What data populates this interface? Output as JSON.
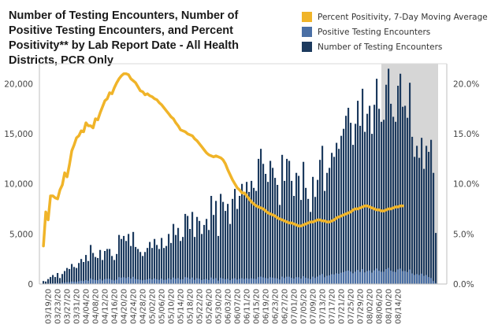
{
  "chart_data": {
    "type": "bar",
    "title": "Number of Testing Encounters, Number of Positive Testing Encounters, and Percent Positivity** by Lab Report Date - All Health Districts, PCR Only",
    "legend": [
      {
        "label": "Percent Positivity, 7-Day Moving Average",
        "color": "#f0b429",
        "kind": "line"
      },
      {
        "label": "Positive Testing Encounters",
        "color": "#4a6fa5",
        "kind": "bar"
      },
      {
        "label": "Number of Testing Encounters",
        "color": "#1c3a5e",
        "kind": "bar"
      }
    ],
    "legend_position": "top-right",
    "xlabel": "",
    "ylabel_left": "",
    "ylabel_right": "",
    "ylim_left": [
      0,
      22000
    ],
    "ylim_right": [
      0,
      0.22
    ],
    "yticks_left": [
      0,
      5000,
      10000,
      15000,
      20000
    ],
    "yticks_left_labels": [
      "0",
      "5,000",
      "10,000",
      "15,000",
      "20,000"
    ],
    "yticks_right_labels": [
      "0.0%",
      "5.0%",
      "10.0%",
      "15.0%",
      "20.0%"
    ],
    "yticks_right": [
      0,
      0.05,
      0.1,
      0.15,
      0.2
    ],
    "x_start": "2020-03-17",
    "x_tick_labels": [
      "03/19/20",
      "03/23/20",
      "03/27/20",
      "03/31/20",
      "04/04/20",
      "04/08/20",
      "04/12/20",
      "04/16/20",
      "04/20/20",
      "04/24/20",
      "04/28/20",
      "05/02/20",
      "05/06/20",
      "05/10/20",
      "05/14/20",
      "05/18/20",
      "05/22/20",
      "05/26/20",
      "05/30/20",
      "06/03/20",
      "06/07/20",
      "06/11/20",
      "06/15/20",
      "06/19/20",
      "06/23/20",
      "06/27/20",
      "07/01/20",
      "07/05/20",
      "07/09/20",
      "07/13/20",
      "07/17/20",
      "07/21/20",
      "07/25/20",
      "07/29/20",
      "08/02/20",
      "08/06/20",
      "08/10/20",
      "08/14/20"
    ],
    "x_tick_first_index": 2,
    "x_tick_step": 4,
    "incomplete_region_start_index": 143,
    "grid": false,
    "series": [
      {
        "name": "Number of Testing Encounters",
        "values": [
          300,
          250,
          500,
          700,
          900,
          700,
          1100,
          600,
          1000,
          1300,
          1600,
          1500,
          2000,
          1700,
          1600,
          2100,
          2500,
          2200,
          2900,
          2300,
          3900,
          3100,
          2700,
          2600,
          3400,
          2400,
          3300,
          3500,
          3500,
          2800,
          2400,
          3000,
          4900,
          4500,
          4800,
          4300,
          5000,
          3800,
          5200,
          3700,
          3500,
          3200,
          2800,
          3200,
          3600,
          4200,
          3600,
          4500,
          3900,
          3500,
          4600,
          3600,
          3800,
          5000,
          4100,
          6000,
          4900,
          5600,
          4300,
          4700,
          7000,
          6800,
          5500,
          7200,
          4700,
          6700,
          6300,
          5000,
          5900,
          6500,
          5400,
          8800,
          6900,
          8300,
          4800,
          9000,
          8200,
          7300,
          8000,
          6000,
          8500,
          9500,
          7500,
          8800,
          10000,
          8900,
          10200,
          9200,
          10300,
          9600,
          9300,
          12500,
          13500,
          12000,
          11000,
          10200,
          12300,
          11600,
          10600,
          9900,
          7900,
          12900,
          10300,
          12500,
          12300,
          10300,
          8800,
          11100,
          10800,
          8400,
          12200,
          9600,
          8500,
          7200,
          10700,
          8700,
          10400,
          12400,
          13800,
          9300,
          11100,
          11600,
          13100,
          12700,
          14100,
          13500,
          14800,
          15500,
          16800,
          17600,
          16100,
          13900,
          16000,
          18300,
          15800,
          19500,
          15200,
          17000,
          17800,
          15000,
          17900,
          20500,
          17500,
          16200,
          16400,
          19900,
          21500,
          18000,
          16700,
          16200,
          19800,
          21000,
          17700,
          17800,
          16600,
          20100,
          14700,
          12700,
          13800,
          12600,
          14600,
          11500,
          13800,
          13200,
          14400,
          11100,
          5100
        ]
      },
      {
        "name": "Positive Testing Encounters",
        "values": [
          20,
          20,
          40,
          60,
          80,
          70,
          110,
          70,
          120,
          150,
          190,
          180,
          250,
          220,
          210,
          280,
          330,
          300,
          400,
          330,
          560,
          450,
          400,
          380,
          500,
          360,
          490,
          520,
          520,
          420,
          360,
          440,
          690,
          640,
          680,
          600,
          700,
          540,
          720,
          510,
          470,
          430,
          380,
          420,
          470,
          540,
          460,
          560,
          480,
          420,
          540,
          420,
          440,
          570,
          460,
          650,
          520,
          590,
          450,
          480,
          690,
          650,
          510,
          650,
          420,
          580,
          530,
          410,
          470,
          510,
          410,
          650,
          500,
          590,
          340,
          620,
          550,
          480,
          520,
          380,
          530,
          580,
          450,
          520,
          580,
          510,
          580,
          520,
          570,
          530,
          510,
          690,
          740,
          660,
          600,
          560,
          680,
          640,
          590,
          560,
          450,
          740,
          600,
          730,
          730,
          620,
          540,
          690,
          680,
          540,
          790,
          630,
          570,
          490,
          740,
          610,
          740,
          890,
          1000,
          680,
          820,
          860,
          980,
          960,
          1070,
          1030,
          1130,
          1190,
          1290,
          1350,
          1240,
          1070,
          1230,
          1400,
          1210,
          1490,
          1160,
          1290,
          1360,
          1140,
          1360,
          1550,
          1320,
          1220,
          1230,
          1490,
          1610,
          1340,
          1240,
          1200,
          1460,
          1540,
          1290,
          1290,
          1200,
          1450,
          1060,
          910,
          990,
          900,
          1040,
          820,
          900,
          700,
          600,
          300,
          100
        ]
      },
      {
        "name": "Percent Positivity, 7-Day Moving Average",
        "axis": "right",
        "values": [
          0.038,
          0.072,
          0.064,
          0.088,
          0.088,
          0.086,
          0.085,
          0.094,
          0.099,
          0.111,
          0.107,
          0.119,
          0.133,
          0.139,
          0.146,
          0.148,
          0.153,
          0.152,
          0.161,
          0.158,
          0.158,
          0.156,
          0.165,
          0.164,
          0.171,
          0.177,
          0.183,
          0.185,
          0.191,
          0.19,
          0.196,
          0.201,
          0.205,
          0.208,
          0.21,
          0.21,
          0.209,
          0.205,
          0.203,
          0.201,
          0.197,
          0.193,
          0.192,
          0.189,
          0.19,
          0.188,
          0.187,
          0.185,
          0.184,
          0.181,
          0.179,
          0.176,
          0.173,
          0.17,
          0.167,
          0.165,
          0.161,
          0.158,
          0.154,
          0.153,
          0.152,
          0.15,
          0.149,
          0.148,
          0.145,
          0.143,
          0.14,
          0.137,
          0.134,
          0.131,
          0.129,
          0.128,
          0.127,
          0.128,
          0.127,
          0.126,
          0.124,
          0.12,
          0.114,
          0.109,
          0.104,
          0.1,
          0.096,
          0.094,
          0.091,
          0.091,
          0.088,
          0.085,
          0.082,
          0.08,
          0.078,
          0.077,
          0.076,
          0.075,
          0.073,
          0.071,
          0.07,
          0.069,
          0.068,
          0.066,
          0.065,
          0.064,
          0.063,
          0.062,
          0.061,
          0.061,
          0.06,
          0.059,
          0.058,
          0.058,
          0.059,
          0.06,
          0.061,
          0.062,
          0.062,
          0.063,
          0.064,
          0.064,
          0.063,
          0.063,
          0.062,
          0.062,
          0.063,
          0.064,
          0.066,
          0.067,
          0.068,
          0.069,
          0.07,
          0.071,
          0.072,
          0.074,
          0.075,
          0.075,
          0.076,
          0.077,
          0.078,
          0.078,
          0.077,
          0.076,
          0.075,
          0.074,
          0.074,
          0.073,
          0.073,
          0.074,
          0.075,
          0.075,
          0.076,
          0.077,
          0.077,
          0.078,
          0.078
        ]
      }
    ]
  }
}
